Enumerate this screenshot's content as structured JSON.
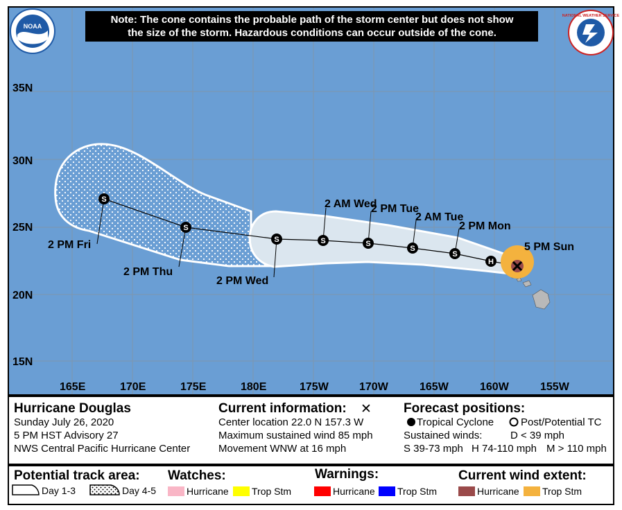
{
  "map": {
    "note_line1": "Note: The cone contains the probable path of the storm center but does not show",
    "note_line2": "the size of the storm. Hazardous conditions can occur outside of the cone.",
    "latitudes": [
      "35N",
      "30N",
      "25N",
      "20N",
      "15N"
    ],
    "longitudes": [
      "165E",
      "170E",
      "175E",
      "180E",
      "175W",
      "170W",
      "165W",
      "160W",
      "155W"
    ],
    "logo_left": "NOAA",
    "logo_right": "NATIONAL WEATHER SERVICE",
    "colors": {
      "ocean": "#6a9ed4",
      "cone_day13": "#dbe6ef",
      "cone_day45": "#6a9ed4",
      "cone_outline": "#ffffff",
      "wind_extent_trop": "#f4b23e",
      "land": "#b9b9b9"
    },
    "forecast_points": [
      {
        "label": "5 PM Sun",
        "type": "current",
        "lat": 22.0,
        "lon": -157.3
      },
      {
        "label": "H",
        "type": "hurricane",
        "lat": 22.5,
        "lon": -159.3
      },
      {
        "label": "2 PM Mon",
        "type": "S",
        "lat": 23.0,
        "lon": -162.8
      },
      {
        "label": "2 AM Tue",
        "type": "S",
        "lat": 23.4,
        "lon": -166.2
      },
      {
        "label": "2 PM Tue",
        "type": "S",
        "lat": 23.8,
        "lon": -169.9
      },
      {
        "label": "2 AM Wed",
        "type": "S",
        "lat": 24.0,
        "lon": -173.6
      },
      {
        "label": "2 PM Wed",
        "type": "S",
        "lat": 24.1,
        "lon": -177.4
      },
      {
        "label": "2 PM Thu",
        "type": "S",
        "lat": 25.0,
        "lon": 174.7
      },
      {
        "label": "2 PM Fri",
        "type": "S",
        "lat": 27.2,
        "lon": 167.6
      }
    ]
  },
  "info": {
    "storm_name": "Hurricane Douglas",
    "date": "Sunday July 26, 2020",
    "advisory": "5 PM HST Advisory 27",
    "center": "NWS Central Pacific Hurricane Center",
    "current_title": "Current information:",
    "current_symbol": "✕",
    "location": "Center location 22.0 N 157.3 W",
    "wind": "Maximum sustained wind 85 mph",
    "movement": "Movement WNW at 16 mph",
    "forecast_title": "Forecast positions:",
    "fc_tropical": "Tropical Cyclone",
    "fc_post": "Post/Potential TC",
    "sustained_winds": "Sustained winds:",
    "d_lt": "D < 39 mph",
    "s_range": "S 39-73 mph",
    "h_range": "H 74-110 mph",
    "m_gt": "M > 110 mph"
  },
  "legend": {
    "track_title": "Potential track area:",
    "day13": "Day 1-3",
    "day45": "Day 4-5",
    "watches_title": "Watches:",
    "watch_hurricane": "Hurricane",
    "watch_trop": "Trop Stm",
    "warnings_title": "Warnings:",
    "warn_hurricane": "Hurricane",
    "warn_trop": "Trop Stm",
    "wind_title": "Current wind extent:",
    "wind_hurricane": "Hurricane",
    "wind_trop": "Trop Stm",
    "colors": {
      "watch_hurricane": "#f9b6c6",
      "watch_trop": "#ffff00",
      "warn_hurricane": "#ff0000",
      "warn_trop": "#0000ff",
      "wind_hurricane": "#9a4a4a",
      "wind_trop": "#f4b23e"
    }
  }
}
